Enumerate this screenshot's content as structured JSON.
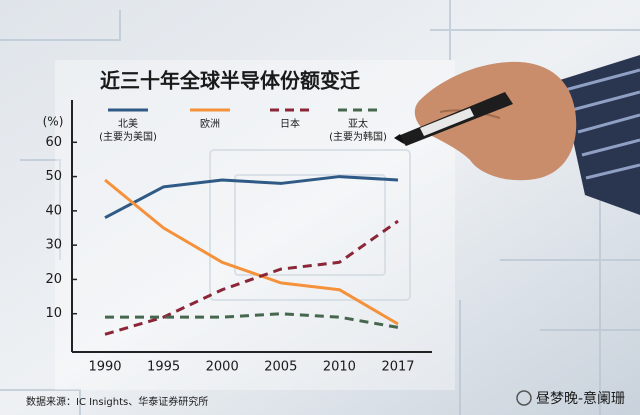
{
  "chart_data": {
    "type": "line",
    "title": "近三十年全球半导体份额变迁",
    "y_label": "(%)",
    "categories": [
      "1990",
      "1995",
      "2000",
      "2005",
      "2010",
      "2017"
    ],
    "series": [
      {
        "name": "北美",
        "note": "(主要为美国)",
        "color": "#2f5a86",
        "dashed": false,
        "values": [
          38,
          47,
          49,
          48,
          50,
          49
        ]
      },
      {
        "name": "欧洲",
        "color": "#f5913a",
        "dashed": false,
        "values": [
          49,
          35,
          25,
          19,
          17,
          7
        ]
      },
      {
        "name": "日本",
        "color": "#8a2637",
        "dashed": true,
        "values": [
          4,
          9,
          17,
          23,
          25,
          37
        ]
      },
      {
        "name": "亚太",
        "note": "(主要为韩国)",
        "color": "#46664d",
        "dashed": true,
        "values": [
          9,
          9,
          9,
          10,
          9,
          6
        ]
      }
    ],
    "ylim": [
      0,
      70
    ],
    "yticks": [
      10,
      20,
      30,
      40,
      50,
      60
    ],
    "source": "数据来源：IC Insights、华泰证券研究所",
    "watermark": "昼梦晚-意阑珊"
  }
}
